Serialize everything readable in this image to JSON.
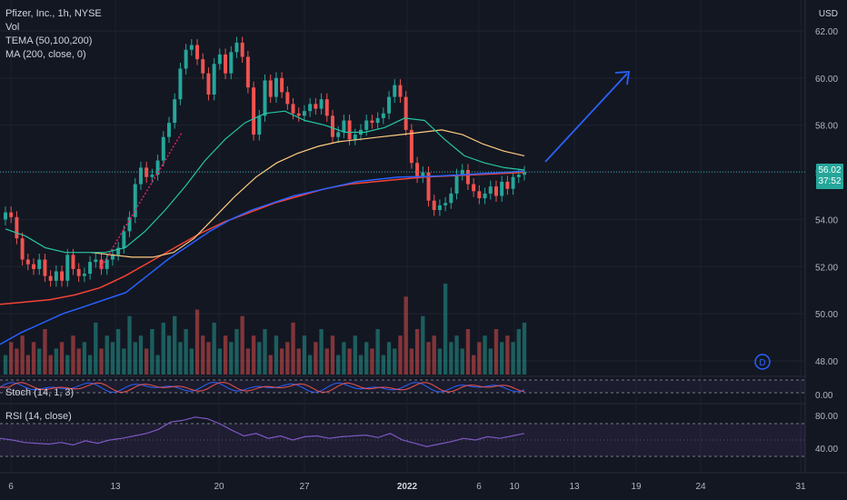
{
  "legend": {
    "symbol_line": "Pfizer, Inc., 1h, NYSE",
    "vol_label": "Vol",
    "tema_label": "TEMA (50,100,200)",
    "ma_label": "MA (200, close, 0)"
  },
  "currency": "USD",
  "last_price": "56.02",
  "countdown": "37:52",
  "stoch_label": "Stoch (14, 1, 3)",
  "rsi_label": "RSI (14, close)",
  "colors": {
    "background": "#131722",
    "up": "#26a69a",
    "down": "#ef5350",
    "tema_fast": "#26c6a2",
    "tema_mid": "#ffcc80",
    "tema_slow": "#f44336",
    "ma": "#2962ff",
    "rsi": "#7e57c2",
    "trendline": "#e91e63",
    "arrow": "#2962ff"
  },
  "chart_data": {
    "type": "candlestick",
    "price_axis": {
      "ticks": [
        "62.00",
        "60.00",
        "58.00",
        "56.00",
        "54.00",
        "52.00",
        "50.00",
        "48.00"
      ],
      "range": [
        46.3,
        62.6
      ]
    },
    "x_ticks": [
      {
        "label": "6",
        "bold": false
      },
      {
        "label": "13",
        "bold": false
      },
      {
        "label": "20",
        "bold": false
      },
      {
        "label": "27",
        "bold": false
      },
      {
        "label": "2022",
        "bold": true
      },
      {
        "label": "6",
        "bold": false
      },
      {
        "label": "10",
        "bold": false
      },
      {
        "label": "13",
        "bold": false
      },
      {
        "label": "19",
        "bold": false
      },
      {
        "label": "24",
        "bold": false
      },
      {
        "label": "31",
        "bold": false
      }
    ],
    "price_path": [
      54.3,
      54.1,
      53.2,
      52.3,
      52.1,
      51.9,
      52.3,
      51.6,
      51.4,
      51.8,
      51.4,
      52.5,
      51.9,
      51.6,
      51.7,
      52.2,
      52.3,
      51.9,
      52.3,
      52.5,
      52.8,
      53.5,
      54.1,
      55.5,
      56.2,
      55.8,
      55.9,
      56.5,
      57.5,
      58.1,
      59.1,
      60.4,
      61.2,
      61.4,
      60.8,
      60.2,
      59.3,
      60.6,
      61.0,
      60.2,
      61.1,
      61.5,
      60.9,
      59.6,
      57.6,
      58.4,
      59.9,
      59.2,
      60.0,
      59.4,
      58.9,
      58.5,
      58.4,
      58.6,
      58.9,
      58.7,
      59.1,
      58.4,
      57.5,
      57.7,
      58.2,
      57.4,
      57.6,
      57.8,
      58.2,
      58.1,
      58.3,
      58.5,
      59.2,
      59.7,
      59.2,
      57.8,
      56.4,
      55.8,
      56.0,
      54.8,
      54.4,
      54.6,
      54.7,
      55.1,
      55.9,
      56.1,
      55.5,
      55.2,
      54.9,
      55.1,
      55.4,
      55.0,
      55.6,
      55.3,
      55.8,
      55.9,
      56.02
    ],
    "ma200_path": [
      48.7,
      49.2,
      49.6,
      50.0,
      50.3,
      50.6,
      50.9,
      51.6,
      52.3,
      52.9,
      53.5,
      54.0,
      54.4,
      54.7,
      55.0,
      55.2,
      55.4,
      55.6,
      55.7,
      55.8,
      55.82,
      55.85,
      55.9,
      55.95,
      56.0,
      56.05
    ],
    "tema_fast_path": [
      53.6,
      53.3,
      52.8,
      52.6,
      52.6,
      52.6,
      52.8,
      53.5,
      54.4,
      55.4,
      56.5,
      57.4,
      58.1,
      58.5,
      58.6,
      58.2,
      58.0,
      57.7,
      57.7,
      57.9,
      58.3,
      58.2,
      57.4,
      56.7,
      56.4,
      56.2,
      56.1
    ],
    "tema_mid_path": [
      52.6,
      52.5,
      52.4,
      52.4,
      52.6,
      53.2,
      54.1,
      55.0,
      55.8,
      56.4,
      56.8,
      57.1,
      57.3,
      57.4,
      57.5,
      57.6,
      57.7,
      57.8,
      57.6,
      57.2,
      56.9,
      56.7
    ],
    "tema_slow_path": [
      50.4,
      50.5,
      50.6,
      50.8,
      51.1,
      51.6,
      52.2,
      52.8,
      53.4,
      53.9,
      54.3,
      54.7,
      55.0,
      55.3,
      55.5,
      55.6,
      55.7,
      55.8,
      55.85,
      55.9,
      55.95,
      56.0
    ],
    "volume": [
      3,
      5,
      4,
      6,
      3,
      5,
      4,
      7,
      3,
      4,
      5,
      3,
      6,
      4,
      5,
      3,
      8,
      4,
      6,
      5,
      7,
      4,
      9,
      5,
      6,
      4,
      7,
      3,
      8,
      6,
      9,
      5,
      7,
      4,
      10,
      6,
      5,
      8,
      4,
      6,
      5,
      7,
      9,
      4,
      6,
      5,
      7,
      3,
      6,
      4,
      5,
      8,
      4,
      6,
      3,
      5,
      7,
      4,
      6,
      3,
      5,
      4,
      6,
      3,
      5,
      4,
      7,
      3,
      5,
      4,
      6,
      12,
      4,
      7,
      9,
      5,
      6,
      4,
      14,
      5,
      6,
      4,
      7,
      3,
      5,
      6,
      4,
      7,
      5,
      6,
      5,
      7,
      8
    ],
    "stoch_range": [
      0,
      100
    ],
    "rsi_ticks": [
      "80.00",
      "40.00"
    ],
    "rsi_bands": [
      70,
      30
    ],
    "rsi_path": [
      52,
      50,
      47,
      46,
      45,
      47,
      44,
      49,
      46,
      50,
      52,
      55,
      58,
      63,
      72,
      74,
      78,
      76,
      70,
      62,
      55,
      58,
      52,
      55,
      50,
      54,
      55,
      52,
      54,
      55,
      56,
      53,
      58,
      50,
      46,
      42,
      45,
      48,
      52,
      50,
      54,
      52,
      55,
      58
    ],
    "stoch_ticks": [
      "0.00"
    ],
    "pattern_drawings": [
      "rising-trendline",
      "projection-arrow"
    ]
  }
}
